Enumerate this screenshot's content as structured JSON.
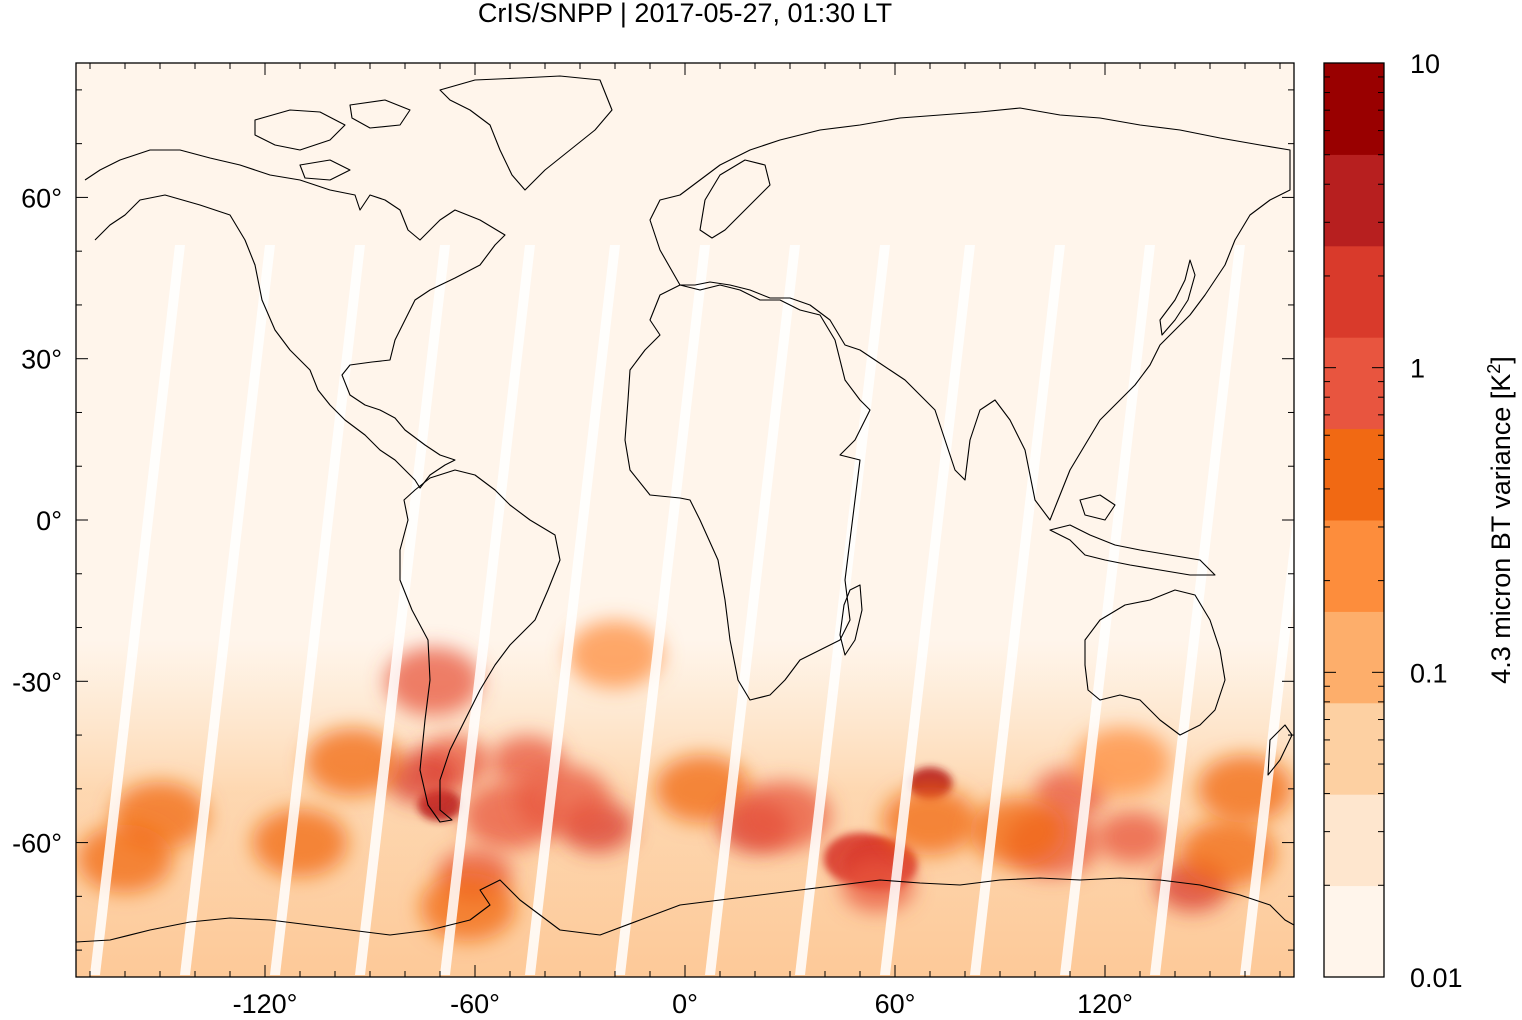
{
  "chart_data": {
    "type": "heatmap",
    "title": "CrIS/SNPP | 2017-05-27, 01:30 LT",
    "xlabel": "",
    "ylabel": "",
    "x_ticks": [
      {
        "value": -120,
        "label": "-120°"
      },
      {
        "value": -60,
        "label": "-60°"
      },
      {
        "value": 0,
        "label": "0°"
      },
      {
        "value": 60,
        "label": "60°"
      },
      {
        "value": 120,
        "label": "120°"
      }
    ],
    "y_ticks": [
      {
        "value": 60,
        "label": "60°"
      },
      {
        "value": 30,
        "label": "30°"
      },
      {
        "value": 0,
        "label": "0°"
      },
      {
        "value": -30,
        "label": "-30°"
      },
      {
        "value": -60,
        "label": "-60°"
      }
    ],
    "xlim": [
      -174,
      174
    ],
    "ylim": [
      -85,
      85
    ],
    "colorbar": {
      "label": "4.3 micron BT variance [K²]",
      "label_main": "4.3 micron BT variance [K",
      "label_sup": "2",
      "label_tail": "]",
      "scale": "log",
      "range": [
        0.01,
        10
      ],
      "ticks": [
        {
          "value": 10,
          "label": "10"
        },
        {
          "value": 1,
          "label": "1"
        },
        {
          "value": 0.1,
          "label": "0.1"
        },
        {
          "value": 0.01,
          "label": "0.01"
        }
      ],
      "colors": [
        "#fff5eb",
        "#fee6ce",
        "#fdd0a2",
        "#fdae6b",
        "#fd8d3c",
        "#f16913",
        "#e8553f",
        "#d93a2b",
        "#b71f1f",
        "#990000"
      ]
    },
    "regions": [
      {
        "lon": -66,
        "lat": -45,
        "value": 1.2
      },
      {
        "lon": -70,
        "lat": -53,
        "value": 3.0
      },
      {
        "lon": -75,
        "lat": -48,
        "value": 1.5
      },
      {
        "lon": -72,
        "lat": -30,
        "value": 0.7
      },
      {
        "lon": -45,
        "lat": -45,
        "value": 1.0
      },
      {
        "lon": -50,
        "lat": -55,
        "value": 0.8
      },
      {
        "lon": -25,
        "lat": -57,
        "value": 1.5
      },
      {
        "lon": -35,
        "lat": -52,
        "value": 0.7
      },
      {
        "lon": -60,
        "lat": -66,
        "value": 1.2
      },
      {
        "lon": -62,
        "lat": -72,
        "value": 0.6
      },
      {
        "lon": -95,
        "lat": -45,
        "value": 0.5
      },
      {
        "lon": -150,
        "lat": -55,
        "value": 0.4
      },
      {
        "lon": -160,
        "lat": -63,
        "value": 0.5
      },
      {
        "lon": -110,
        "lat": -60,
        "value": 0.4
      },
      {
        "lon": -20,
        "lat": -25,
        "value": 0.3
      },
      {
        "lon": 5,
        "lat": -50,
        "value": 0.4
      },
      {
        "lon": 20,
        "lat": -57,
        "value": 1.3
      },
      {
        "lon": 28,
        "lat": -55,
        "value": 0.8
      },
      {
        "lon": 50,
        "lat": -63,
        "value": 2.0
      },
      {
        "lon": 56,
        "lat": -64,
        "value": 2.5
      },
      {
        "lon": 55,
        "lat": -68,
        "value": 1.2
      },
      {
        "lon": 70,
        "lat": -49,
        "value": 5.0
      },
      {
        "lon": 70,
        "lat": -56,
        "value": 0.5
      },
      {
        "lon": 110,
        "lat": -51,
        "value": 1.0
      },
      {
        "lon": 105,
        "lat": -60,
        "value": 0.8
      },
      {
        "lon": 128,
        "lat": -59,
        "value": 1.2
      },
      {
        "lon": 145,
        "lat": -68,
        "value": 1.5
      },
      {
        "lon": 155,
        "lat": -62,
        "value": 0.6
      },
      {
        "lon": 160,
        "lat": -50,
        "value": 0.4
      },
      {
        "lon": 125,
        "lat": -45,
        "value": 0.3
      },
      {
        "lon": 95,
        "lat": -58,
        "value": 0.5
      }
    ]
  }
}
